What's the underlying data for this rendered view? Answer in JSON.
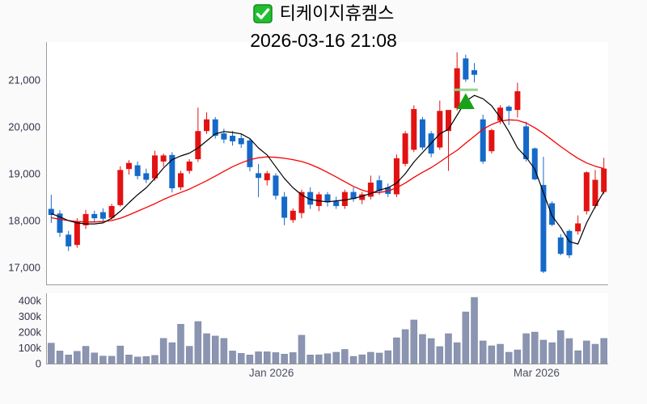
{
  "header": {
    "title": "티케이지휴켐스",
    "subtitle": "2026-03-16 21:08",
    "checkmark_icon": "checked-checkbox-icon",
    "checkmark_color": "#21bf30",
    "checkmark_border": "#128a1e"
  },
  "colors": {
    "background": "#fafafa",
    "plot_background": "#ffffff",
    "axis_line": "#9c9c9c",
    "price_tick_label": "#33334a",
    "month_label": "#4c4f63"
  },
  "chart_data": [
    {
      "type": "candlestick",
      "name": "price-chart",
      "up_color": "#e31212",
      "down_color": "#1569c8",
      "ylim": [
        16638,
        21810
      ],
      "yticks": [
        {
          "value": 21000,
          "label": "21,000"
        },
        {
          "value": 20000,
          "label": "20,000"
        },
        {
          "value": 19000,
          "label": "19,000"
        },
        {
          "value": 18000,
          "label": "18,000"
        },
        {
          "value": 17000,
          "label": "17,000"
        }
      ],
      "xtick_labels": [
        {
          "label": "Jan 2026",
          "index": 26
        },
        {
          "label": "Mar 2026",
          "index": 56.7
        }
      ],
      "legend_position": "none",
      "grid": false,
      "candles_ohlc": [
        [
          18250,
          18550,
          17950,
          18120
        ],
        [
          18150,
          18220,
          17650,
          17740
        ],
        [
          17700,
          17780,
          17350,
          17450
        ],
        [
          17480,
          18050,
          17420,
          17980
        ],
        [
          17900,
          18230,
          17820,
          18140
        ],
        [
          18140,
          18210,
          17980,
          18050
        ],
        [
          18180,
          18260,
          17990,
          18040
        ],
        [
          18060,
          18360,
          18020,
          18310
        ],
        [
          18330,
          19160,
          18300,
          19080
        ],
        [
          19100,
          19290,
          18980,
          19230
        ],
        [
          19180,
          19260,
          18880,
          18950
        ],
        [
          19010,
          19110,
          18800,
          18870
        ],
        [
          18900,
          19490,
          18850,
          19390
        ],
        [
          19260,
          19430,
          19150,
          19390
        ],
        [
          19400,
          19460,
          18600,
          18690
        ],
        [
          18710,
          19060,
          18650,
          19010
        ],
        [
          19060,
          19310,
          19000,
          19260
        ],
        [
          19310,
          20410,
          19250,
          19910
        ],
        [
          19910,
          20310,
          19850,
          20160
        ],
        [
          20160,
          20210,
          19750,
          19810
        ],
        [
          19860,
          19960,
          19650,
          19730
        ],
        [
          19810,
          19910,
          19600,
          19690
        ],
        [
          19760,
          19840,
          19550,
          19630
        ],
        [
          19710,
          19760,
          19050,
          19140
        ],
        [
          19010,
          19210,
          18500,
          18910
        ],
        [
          18860,
          19060,
          18750,
          19010
        ],
        [
          18960,
          19010,
          18450,
          18530
        ],
        [
          18510,
          18610,
          17900,
          18060
        ],
        [
          18010,
          18260,
          17950,
          18210
        ],
        [
          18160,
          18660,
          18050,
          18610
        ],
        [
          18610,
          18710,
          18250,
          18340
        ],
        [
          18310,
          18610,
          18200,
          18560
        ],
        [
          18560,
          18610,
          18300,
          18390
        ],
        [
          18410,
          18510,
          18250,
          18310
        ],
        [
          18310,
          18660,
          18250,
          18610
        ],
        [
          18610,
          18710,
          18400,
          18460
        ],
        [
          18440,
          18610,
          18350,
          18560
        ],
        [
          18510,
          18960,
          18450,
          18810
        ],
        [
          18860,
          18960,
          18550,
          18630
        ],
        [
          18710,
          18790,
          18500,
          18570
        ],
        [
          18560,
          19410,
          18500,
          19330
        ],
        [
          19210,
          19910,
          19160,
          19860
        ],
        [
          19510,
          20460,
          19460,
          20380
        ],
        [
          20160,
          20210,
          19510,
          19560
        ],
        [
          19860,
          19910,
          19350,
          19430
        ],
        [
          19560,
          20560,
          19510,
          20340
        ],
        [
          19910,
          20360,
          19060,
          20360
        ],
        [
          20400,
          21590,
          20350,
          21250
        ],
        [
          21460,
          21540,
          20960,
          21010
        ],
        [
          21210,
          21360,
          20950,
          21110
        ],
        [
          20160,
          20260,
          19210,
          19260
        ],
        [
          19480,
          19960,
          19430,
          19930
        ],
        [
          20130,
          20460,
          20060,
          20410
        ],
        [
          20430,
          20460,
          20040,
          20340
        ],
        [
          20360,
          20940,
          20200,
          20760
        ],
        [
          20010,
          20110,
          19260,
          19310
        ],
        [
          19540,
          19560,
          18860,
          18880
        ],
        [
          18760,
          19360,
          16880,
          16910
        ],
        [
          18370,
          18410,
          17880,
          17910
        ],
        [
          17640,
          17710,
          17260,
          17290
        ],
        [
          17780,
          17810,
          17200,
          17260
        ],
        [
          17770,
          18110,
          17700,
          17940
        ],
        [
          18200,
          19050,
          18130,
          19030
        ],
        [
          18310,
          19080,
          18260,
          18870
        ],
        [
          18610,
          19340,
          18560,
          19110
        ]
      ],
      "ma_short": {
        "name": "short-moving-average",
        "color": "#000000",
        "values": [
          18150,
          18080,
          18000,
          17950,
          17930,
          17930,
          17950,
          18050,
          18200,
          18380,
          18550,
          18700,
          18900,
          19120,
          19300,
          19380,
          19440,
          19550,
          19700,
          19850,
          19900,
          19880,
          19850,
          19750,
          19550,
          19400,
          19150,
          18900,
          18700,
          18550,
          18450,
          18420,
          18400,
          18420,
          18440,
          18470,
          18520,
          18580,
          18650,
          18700,
          18800,
          19000,
          19250,
          19450,
          19650,
          19850,
          19950,
          20250,
          20550,
          20670,
          20600,
          20450,
          20200,
          19900,
          19550,
          19350,
          19100,
          18600,
          18100,
          17850,
          17550,
          17500,
          17950,
          18300,
          18620
        ]
      },
      "ma_long": {
        "name": "long-moving-average",
        "color": "#f80000",
        "values": [
          18060,
          18030,
          18000,
          17980,
          17970,
          17970,
          17980,
          18000,
          18050,
          18120,
          18200,
          18280,
          18360,
          18450,
          18530,
          18600,
          18670,
          18760,
          18850,
          18950,
          19050,
          19150,
          19230,
          19300,
          19340,
          19360,
          19350,
          19330,
          19300,
          19260,
          19200,
          19120,
          19030,
          18930,
          18830,
          18730,
          18650,
          18600,
          18600,
          18630,
          18700,
          18800,
          18920,
          19030,
          19130,
          19250,
          19380,
          19500,
          19650,
          19800,
          19950,
          20050,
          20120,
          20150,
          20140,
          20080,
          19980,
          19860,
          19720,
          19580,
          19450,
          19330,
          19230,
          19160,
          19110
        ]
      },
      "marker": {
        "shape": "triangle-up",
        "color": "#17a317",
        "band_color": "#8fd48f",
        "index": 48.5,
        "apex_price": 20720,
        "base_price": 20380,
        "band_price": 20790,
        "half_width": 11,
        "band_half_width": 15
      }
    },
    {
      "type": "bar",
      "name": "volume-chart",
      "unit": "thousands",
      "bar_color": "#8b95b2",
      "bar_edge": "#78829f",
      "ylim": [
        0,
        446
      ],
      "yticks": [
        {
          "value": 400,
          "label": "400k"
        },
        {
          "value": 300,
          "label": "300k"
        },
        {
          "value": 200,
          "label": "200k"
        },
        {
          "value": 100,
          "label": "100k"
        },
        {
          "value": 0,
          "label": "0"
        }
      ],
      "values": [
        130,
        80,
        55,
        78,
        110,
        68,
        48,
        47,
        112,
        55,
        42,
        45,
        52,
        160,
        133,
        250,
        110,
        267,
        190,
        175,
        160,
        80,
        65,
        55,
        75,
        75,
        70,
        60,
        70,
        180,
        55,
        56,
        63,
        72,
        90,
        46,
        56,
        72,
        67,
        82,
        164,
        216,
        277,
        185,
        159,
        108,
        190,
        133,
        328,
        420,
        144,
        113,
        123,
        72,
        87,
        190,
        200,
        149,
        133,
        210,
        159,
        82,
        144,
        123,
        160
      ]
    }
  ]
}
